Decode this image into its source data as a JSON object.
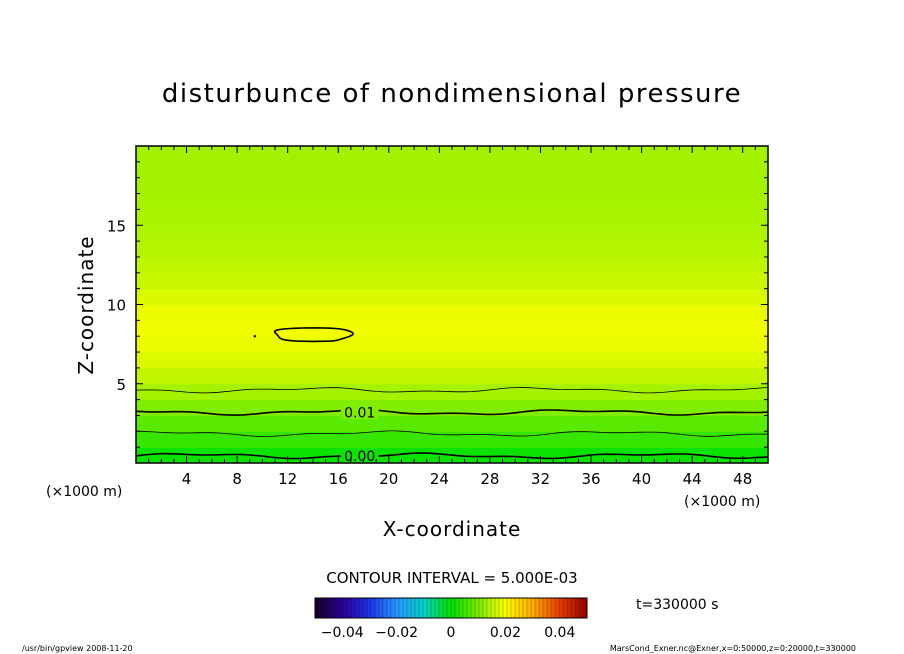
{
  "chart_data": {
    "type": "heatmap",
    "title": "disturbunce of nondimensional pressure",
    "xlabel": "X-coordinate",
    "ylabel": "Z-coordinate",
    "x_unit": "(×1000 m)",
    "y_unit": "(×1000 m)",
    "xlim": [
      0,
      50
    ],
    "ylim": [
      0,
      20
    ],
    "x_ticks": [
      4,
      8,
      12,
      16,
      20,
      24,
      28,
      32,
      36,
      40,
      44,
      48
    ],
    "y_ticks": [
      5,
      10,
      15
    ],
    "contour_interval_label": "CONTOUR INTERVAL = 5.000E-03",
    "contour_labels": [
      "0.01",
      "0.00"
    ],
    "time_label": "t=330000 s",
    "colorbar": {
      "min": -0.05,
      "max": 0.05,
      "tick_values": [
        -0.04,
        -0.02,
        0,
        0.02,
        0.04
      ],
      "tick_labels": [
        "−0.04",
        "−0.02",
        "0",
        "0.02",
        "0.04"
      ]
    },
    "profile_z": [
      0,
      1,
      2,
      3,
      4,
      5,
      6,
      7,
      8,
      9,
      10,
      11,
      12,
      13,
      14,
      15,
      16,
      17,
      18,
      19,
      20
    ],
    "profile_value": [
      -0.001,
      0.003,
      0.006,
      0.009,
      0.012,
      0.0145,
      0.0165,
      0.018,
      0.019,
      0.019,
      0.018,
      0.0165,
      0.0155,
      0.0148,
      0.0142,
      0.0138,
      0.0135,
      0.0133,
      0.0131,
      0.013,
      0.013
    ],
    "contour_levels": [
      {
        "level": 0.0,
        "z": 0.45,
        "labeled": true
      },
      {
        "level": 0.005,
        "z": 1.85,
        "labeled": false
      },
      {
        "level": 0.01,
        "z": 3.2,
        "labeled": true
      },
      {
        "level": 0.015,
        "z": 4.6,
        "labeled": false
      }
    ],
    "closed_contour": {
      "level": 0.02,
      "x_range": [
        11,
        17
      ],
      "z_range": [
        7.6,
        8.6
      ]
    }
  },
  "footer": {
    "left": "/usr/bin/gpview   2008-11-20",
    "right": "MarsCond_Exner.nc@Exner,x=0:50000,z=0:20000,t=330000"
  }
}
